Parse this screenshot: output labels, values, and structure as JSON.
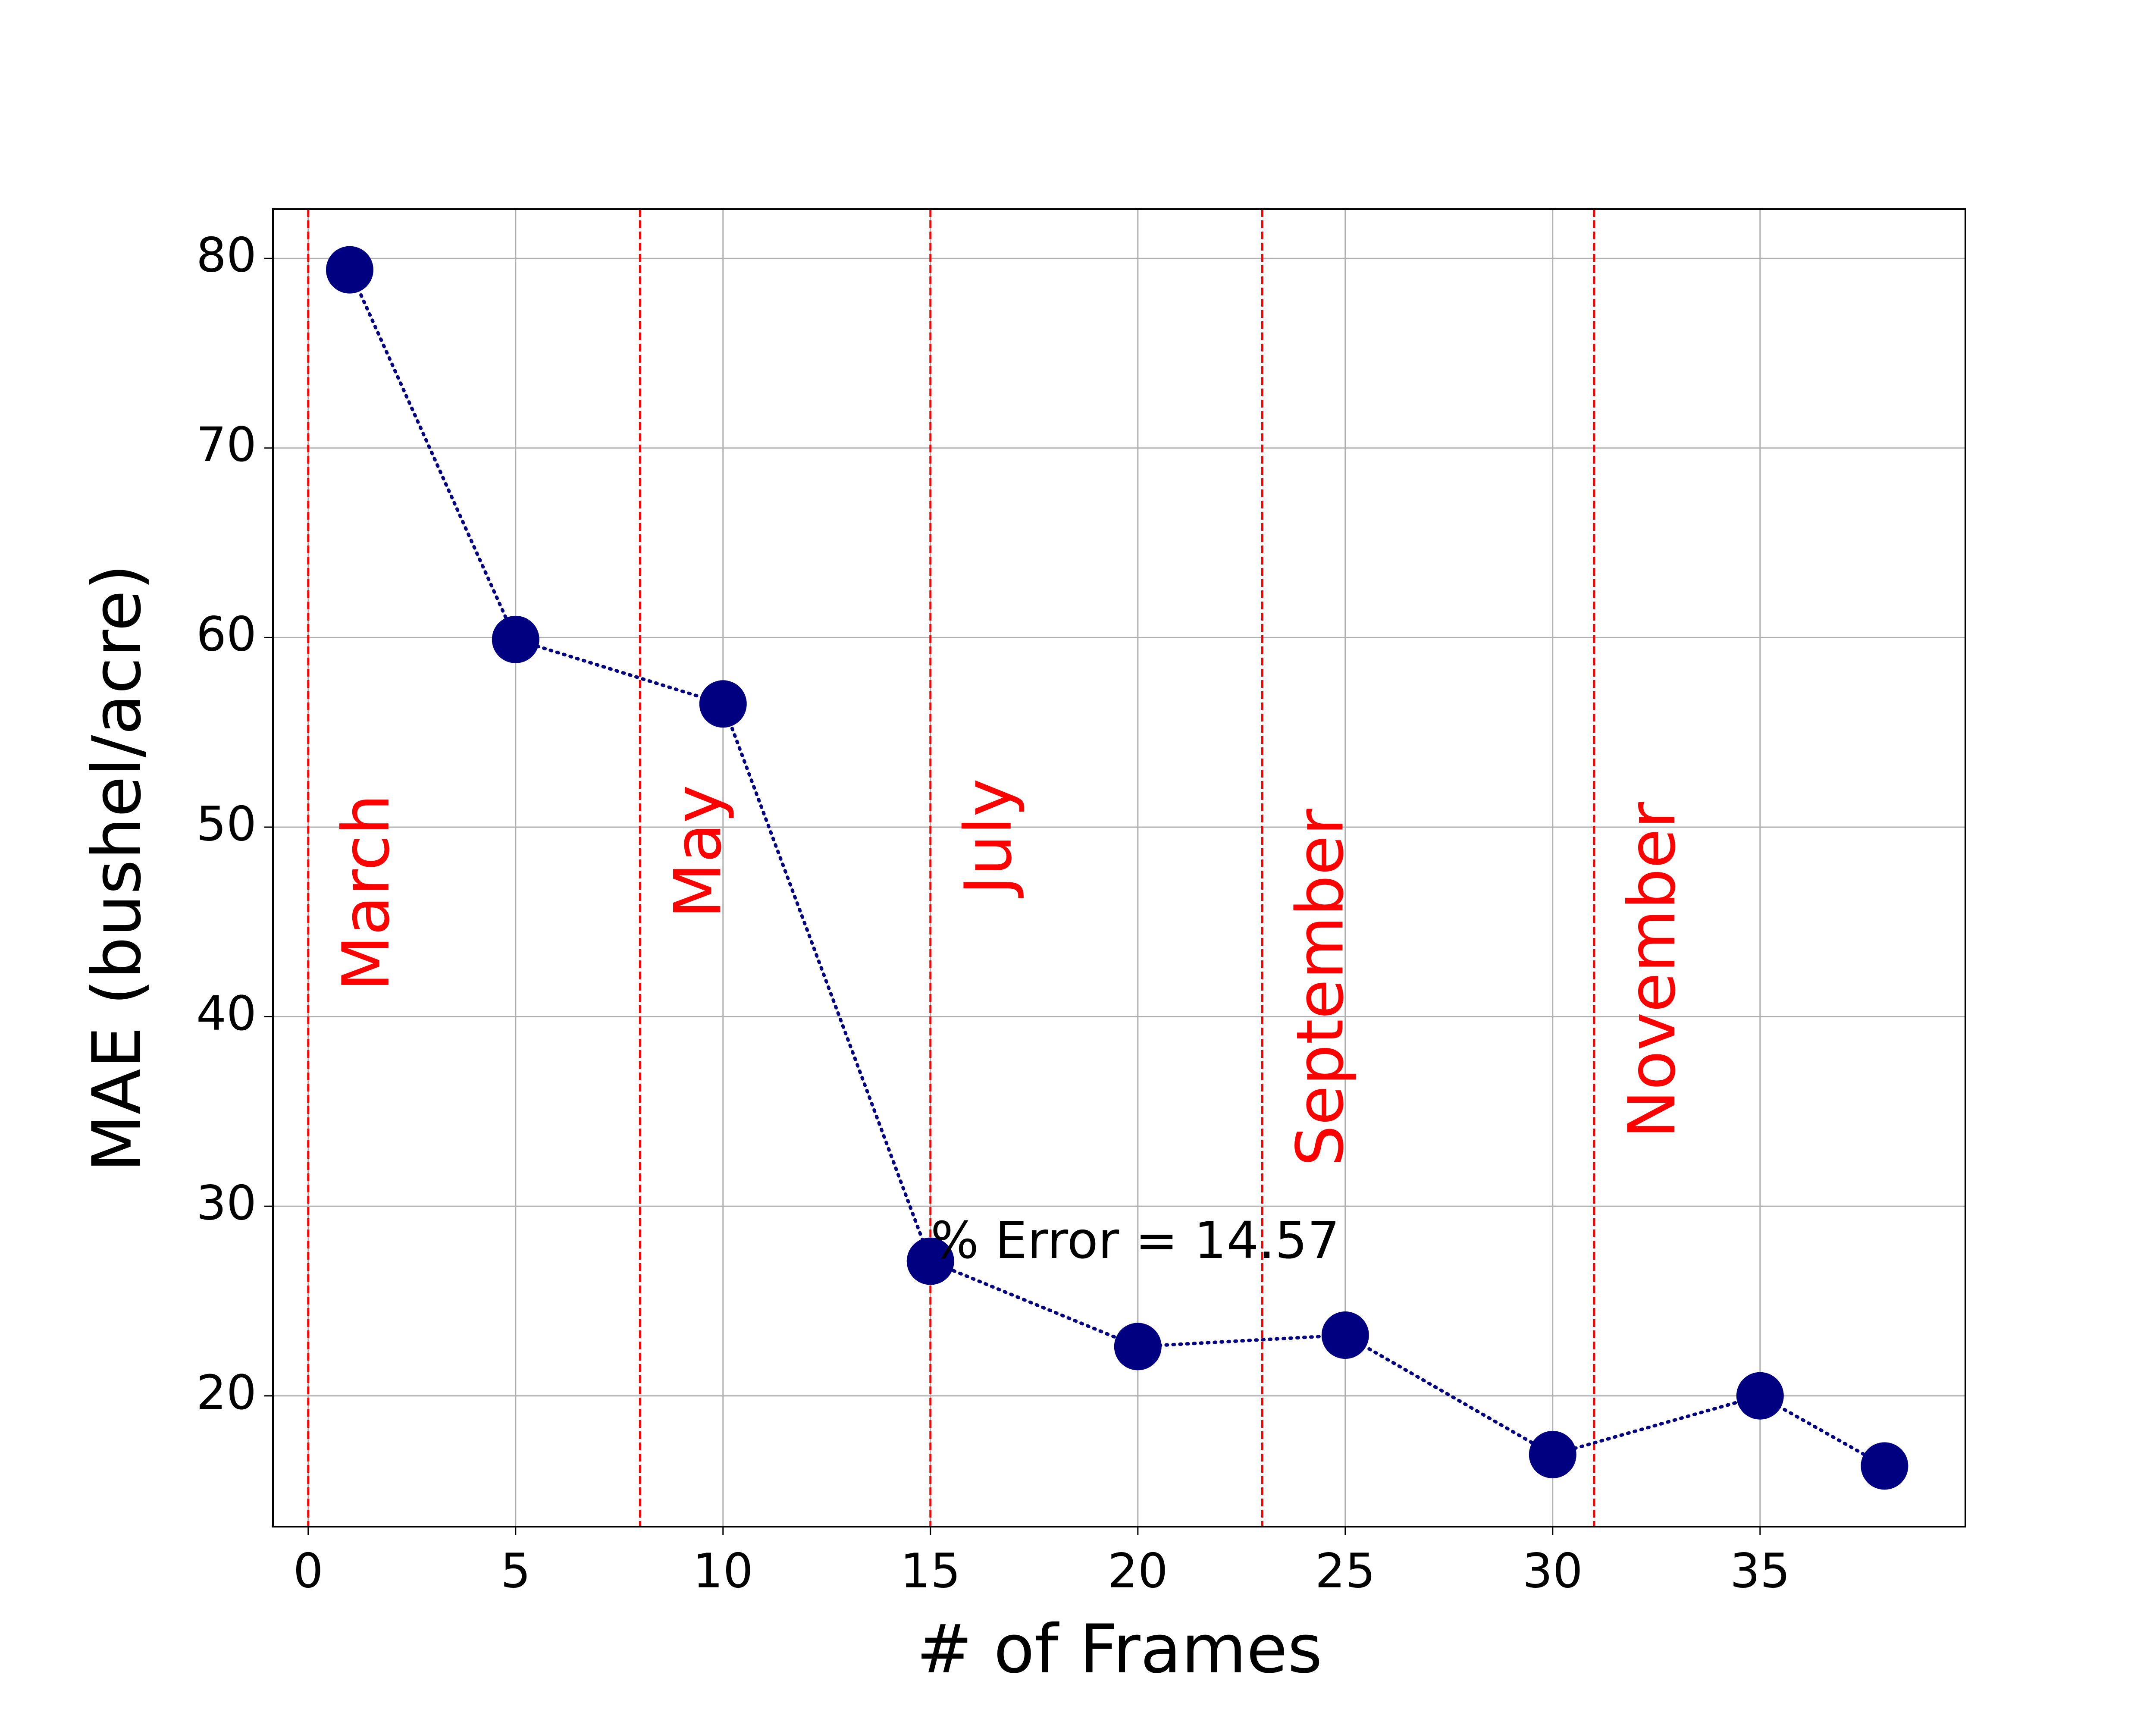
{
  "chart_data": {
    "type": "line",
    "xlabel": "# of Frames",
    "ylabel": "MAE (bushel/acre)",
    "x": [
      1,
      5,
      10,
      15,
      20,
      25,
      30,
      35,
      38
    ],
    "values": [
      79.4,
      59.9,
      56.5,
      27.1,
      22.6,
      23.2,
      16.9,
      20.0,
      16.3
    ],
    "color": "#000080",
    "xlim": [
      -0.85,
      39.95
    ],
    "ylim": [
      13.1,
      82.6
    ],
    "xticks": [
      0,
      5,
      10,
      15,
      20,
      25,
      30,
      35
    ],
    "yticks": [
      20,
      30,
      40,
      50,
      60,
      70,
      80
    ],
    "grid": true,
    "vlines": [
      {
        "x": 0,
        "label": "March"
      },
      {
        "x": 8,
        "label": "May"
      },
      {
        "x": 15,
        "label": "July"
      },
      {
        "x": 23,
        "label": "September"
      },
      {
        "x": 31,
        "label": "November"
      }
    ],
    "vline_color": "#ff0000",
    "annotation": "% Error = 14.57"
  }
}
